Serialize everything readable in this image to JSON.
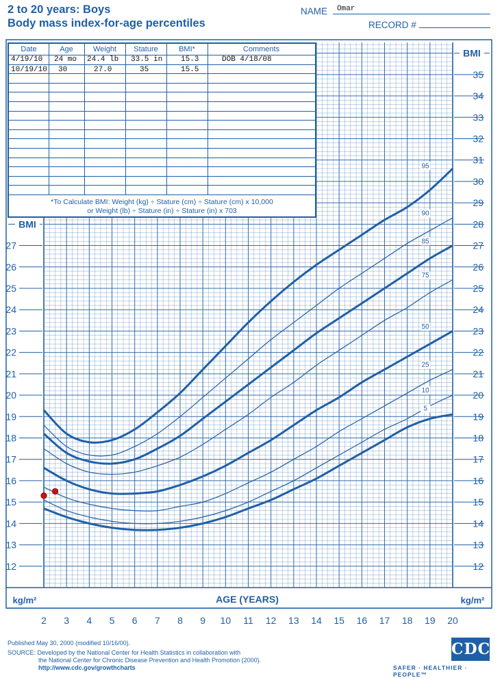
{
  "header": {
    "title": "2 to 20 years: Boys",
    "subtitle": "Body mass index-for-age percentiles",
    "name_label": "NAME",
    "name_value": "Omar",
    "record_label": "RECORD #",
    "record_value": ""
  },
  "table": {
    "headers": [
      "Date",
      "Age",
      "Weight",
      "Stature",
      "BMI*",
      "Comments"
    ],
    "rows": [
      [
        "4/19/10",
        "24 mo",
        "24.4 lb",
        "33.5 in",
        "15.3",
        "DOB 4/18/08"
      ],
      [
        "10/19/10",
        "30",
        "27.0",
        "35",
        "15.5",
        ""
      ]
    ],
    "formula_line1": "*To Calculate BMI: Weight (kg) ÷ Stature (cm) ÷ Stature (cm) x 10,000",
    "formula_line2": "or Weight (lb) ÷ Stature (in) ÷ Stature (in) x 703"
  },
  "footer": {
    "published": "Published May 30, 2000 (modified 10/16/00).",
    "source1": "SOURCE: Developed by the National Center for Health Statistics in collaboration with",
    "source2": "the National Center for Chronic Disease Prevention and Health Promotion (2000).",
    "url": "http://www.cdc.gov/growthcharts",
    "logo": "CDC",
    "slogan": "SAFER · HEALTHIER · PEOPLE™"
  },
  "chart_data": {
    "type": "line",
    "xlabel": "AGE (YEARS)",
    "ylabel": "BMI",
    "yunit": "kg/m²",
    "xlim": [
      2,
      20
    ],
    "ylim": [
      11,
      36.5
    ],
    "x_ticks": [
      2,
      3,
      4,
      5,
      6,
      7,
      8,
      9,
      10,
      11,
      12,
      13,
      14,
      15,
      16,
      17,
      18,
      19,
      20
    ],
    "y_ticks_left": [
      12,
      13,
      14,
      15,
      16,
      17,
      18,
      19,
      20,
      21,
      22,
      23,
      24,
      25,
      26,
      27
    ],
    "y_ticks_right": [
      12,
      13,
      14,
      15,
      16,
      17,
      18,
      19,
      20,
      21,
      22,
      23,
      24,
      25,
      26,
      27,
      28,
      29,
      30,
      31,
      32,
      33,
      34,
      35
    ],
    "grid": true,
    "series": [
      {
        "name": "95",
        "thick": true,
        "x": [
          2,
          3,
          4,
          5,
          6,
          7,
          8,
          9,
          10,
          11,
          12,
          13,
          14,
          15,
          16,
          17,
          18,
          19,
          20
        ],
        "y": [
          19.3,
          18.2,
          17.8,
          17.9,
          18.4,
          19.2,
          20.1,
          21.2,
          22.3,
          23.4,
          24.4,
          25.3,
          26.1,
          26.8,
          27.5,
          28.2,
          28.8,
          29.6,
          30.6
        ]
      },
      {
        "name": "90",
        "thick": false,
        "x": [
          2,
          3,
          4,
          5,
          6,
          7,
          8,
          9,
          10,
          11,
          12,
          13,
          14,
          15,
          16,
          17,
          18,
          19,
          20
        ],
        "y": [
          18.6,
          17.6,
          17.2,
          17.2,
          17.6,
          18.2,
          19.0,
          19.9,
          20.8,
          21.7,
          22.6,
          23.4,
          24.2,
          25.0,
          25.7,
          26.4,
          27.1,
          27.7,
          28.3
        ]
      },
      {
        "name": "85",
        "thick": true,
        "x": [
          2,
          3,
          4,
          5,
          6,
          7,
          8,
          9,
          10,
          11,
          12,
          13,
          14,
          15,
          16,
          17,
          18,
          19,
          20
        ],
        "y": [
          18.2,
          17.3,
          16.9,
          16.8,
          17.0,
          17.5,
          18.1,
          18.9,
          19.7,
          20.5,
          21.3,
          22.1,
          22.9,
          23.6,
          24.3,
          25.0,
          25.7,
          26.4,
          27.0
        ]
      },
      {
        "name": "75",
        "thick": false,
        "x": [
          2,
          3,
          4,
          5,
          6,
          7,
          8,
          9,
          10,
          11,
          12,
          13,
          14,
          15,
          16,
          17,
          18,
          19,
          20
        ],
        "y": [
          17.5,
          16.8,
          16.4,
          16.3,
          16.4,
          16.7,
          17.1,
          17.7,
          18.4,
          19.1,
          19.9,
          20.6,
          21.4,
          22.1,
          22.8,
          23.5,
          24.1,
          24.8,
          25.4
        ]
      },
      {
        "name": "50",
        "thick": true,
        "x": [
          2,
          3,
          4,
          5,
          6,
          7,
          8,
          9,
          10,
          11,
          12,
          13,
          14,
          15,
          16,
          17,
          18,
          19,
          20
        ],
        "y": [
          16.6,
          16.0,
          15.6,
          15.4,
          15.4,
          15.5,
          15.8,
          16.2,
          16.7,
          17.3,
          17.9,
          18.6,
          19.3,
          19.9,
          20.6,
          21.2,
          21.8,
          22.4,
          23.0
        ]
      },
      {
        "name": "25",
        "thick": false,
        "x": [
          2,
          3,
          4,
          5,
          6,
          7,
          8,
          9,
          10,
          11,
          12,
          13,
          14,
          15,
          16,
          17,
          18,
          19,
          20
        ],
        "y": [
          15.7,
          15.2,
          14.9,
          14.7,
          14.6,
          14.6,
          14.8,
          15.0,
          15.4,
          15.9,
          16.4,
          17.0,
          17.6,
          18.3,
          18.9,
          19.5,
          20.1,
          20.7,
          21.2
        ]
      },
      {
        "name": "10",
        "thick": false,
        "x": [
          2,
          3,
          4,
          5,
          6,
          7,
          8,
          9,
          10,
          11,
          12,
          13,
          14,
          15,
          16,
          17,
          18,
          19,
          20
        ],
        "y": [
          15.1,
          14.6,
          14.3,
          14.1,
          14.0,
          14.0,
          14.1,
          14.3,
          14.6,
          15.0,
          15.5,
          16.0,
          16.6,
          17.2,
          17.8,
          18.4,
          18.9,
          19.5,
          20.0
        ]
      },
      {
        "name": "5",
        "thick": true,
        "x": [
          2,
          3,
          4,
          5,
          6,
          7,
          8,
          9,
          10,
          11,
          12,
          13,
          14,
          15,
          16,
          17,
          18,
          19,
          20
        ],
        "y": [
          14.7,
          14.3,
          14.0,
          13.8,
          13.7,
          13.7,
          13.8,
          14.0,
          14.3,
          14.7,
          15.1,
          15.6,
          16.1,
          16.7,
          17.3,
          17.9,
          18.5,
          18.9,
          19.1
        ]
      }
    ],
    "points": [
      {
        "x": 2.0,
        "y": 15.3,
        "color": "#cc1111"
      },
      {
        "x": 2.5,
        "y": 15.5,
        "color": "#cc1111"
      }
    ],
    "colors": {
      "line": "#1f5fa6",
      "grid": "#1f5fa6",
      "point": "#cc1111"
    }
  }
}
